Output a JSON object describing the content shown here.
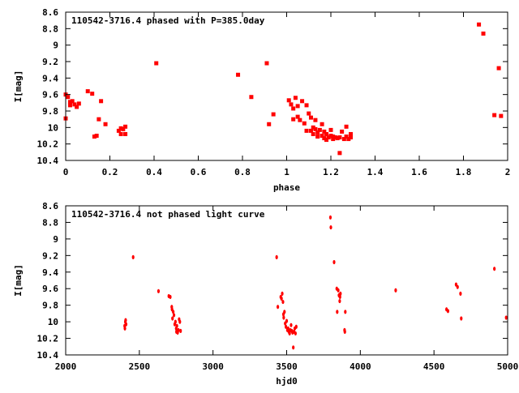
{
  "chart_data": [
    {
      "type": "scatter",
      "title": "110542-3716.4 phased with P=385.0day",
      "xlabel": "phase",
      "ylabel": "I[mag]",
      "xlim": [
        0,
        2
      ],
      "ylim": [
        10.4,
        8.6
      ],
      "y_inverted": true,
      "xticks": [
        0,
        0.2,
        0.4,
        0.6,
        0.8,
        1,
        1.2,
        1.4,
        1.6,
        1.8,
        2
      ],
      "xtick_labels": [
        "0",
        "0.2",
        "0.4",
        "0.6",
        "0.8",
        "1",
        "1.2",
        "1.4",
        "1.6",
        "1.8",
        "2"
      ],
      "yticks": [
        8.6,
        8.8,
        9,
        9.2,
        9.4,
        9.6,
        9.8,
        10,
        10.2,
        10.4
      ],
      "ytick_labels": [
        "8.6",
        "8.8",
        "9",
        "9.2",
        "9.4",
        "9.6",
        "9.8",
        "10",
        "10.2",
        "10.4"
      ],
      "grid": false,
      "marker_color": "#ff0000",
      "series": [
        {
          "points": [
            [
              0.0,
              9.6
            ],
            [
              0.0,
              9.89
            ],
            [
              0.01,
              9.63
            ],
            [
              0.02,
              9.73
            ],
            [
              0.02,
              9.69
            ],
            [
              0.03,
              9.68
            ],
            [
              0.04,
              9.72
            ],
            [
              0.05,
              9.75
            ],
            [
              0.06,
              9.71
            ],
            [
              0.1,
              9.56
            ],
            [
              0.12,
              9.59
            ],
            [
              0.13,
              10.11
            ],
            [
              0.14,
              10.1
            ],
            [
              0.15,
              9.9
            ],
            [
              0.16,
              9.68
            ],
            [
              0.18,
              9.96
            ],
            [
              0.24,
              10.04
            ],
            [
              0.25,
              10.08
            ],
            [
              0.25,
              10.01
            ],
            [
              0.26,
              10.02
            ],
            [
              0.27,
              10.08
            ],
            [
              0.27,
              9.99
            ],
            [
              0.41,
              9.22
            ],
            [
              0.78,
              9.36
            ],
            [
              0.84,
              9.63
            ],
            [
              0.91,
              9.22
            ],
            [
              0.92,
              9.96
            ],
            [
              0.94,
              9.84
            ],
            [
              1.01,
              9.67
            ],
            [
              1.02,
              9.72
            ],
            [
              1.03,
              9.77
            ],
            [
              1.03,
              9.9
            ],
            [
              1.04,
              9.64
            ],
            [
              1.05,
              9.74
            ],
            [
              1.05,
              9.87
            ],
            [
              1.06,
              9.91
            ],
            [
              1.07,
              9.68
            ],
            [
              1.08,
              9.95
            ],
            [
              1.09,
              9.73
            ],
            [
              1.09,
              10.04
            ],
            [
              1.1,
              9.83
            ],
            [
              1.11,
              9.88
            ],
            [
              1.11,
              10.04
            ],
            [
              1.12,
              10.0
            ],
            [
              1.12,
              10.08
            ],
            [
              1.13,
              9.91
            ],
            [
              1.13,
              10.02
            ],
            [
              1.14,
              10.06
            ],
            [
              1.14,
              10.11
            ],
            [
              1.15,
              10.03
            ],
            [
              1.16,
              9.96
            ],
            [
              1.16,
              10.1
            ],
            [
              1.17,
              10.05
            ],
            [
              1.17,
              10.13
            ],
            [
              1.18,
              10.08
            ],
            [
              1.18,
              10.15
            ],
            [
              1.19,
              10.12
            ],
            [
              1.2,
              10.03
            ],
            [
              1.2,
              10.1
            ],
            [
              1.21,
              10.11
            ],
            [
              1.21,
              10.14
            ],
            [
              1.22,
              10.12
            ],
            [
              1.23,
              10.13
            ],
            [
              1.24,
              10.12
            ],
            [
              1.24,
              10.31
            ],
            [
              1.25,
              10.05
            ],
            [
              1.26,
              10.14
            ],
            [
              1.27,
              9.99
            ],
            [
              1.27,
              10.11
            ],
            [
              1.28,
              10.14
            ],
            [
              1.29,
              10.08
            ],
            [
              1.29,
              10.12
            ],
            [
              1.87,
              8.75
            ],
            [
              1.89,
              8.86
            ],
            [
              1.94,
              9.85
            ],
            [
              1.96,
              9.28
            ],
            [
              1.97,
              9.86
            ]
          ]
        }
      ]
    },
    {
      "type": "scatter",
      "title": "110542-3716.4 not phased light curve",
      "xlabel": "hjd0",
      "ylabel": "I[mag]",
      "xlim": [
        2000,
        5000
      ],
      "ylim": [
        10.4,
        8.6
      ],
      "y_inverted": true,
      "xticks": [
        2000,
        2500,
        3000,
        3500,
        4000,
        4500,
        5000
      ],
      "xtick_labels": [
        "2000",
        "2500",
        "3000",
        "3500",
        "4000",
        "4500",
        "5000"
      ],
      "yticks": [
        8.6,
        8.8,
        9,
        9.2,
        9.4,
        9.6,
        9.8,
        10,
        10.2,
        10.4
      ],
      "ytick_labels": [
        "8.6",
        "8.8",
        "9",
        "9.2",
        "9.4",
        "9.6",
        "9.8",
        "10",
        "10.2",
        "10.4"
      ],
      "grid": false,
      "marker_color": "#ff0000",
      "series": [
        {
          "points": [
            [
              2400,
              10.05
            ],
            [
              2402,
              10.08
            ],
            [
              2405,
              10.0
            ],
            [
              2407,
              9.98
            ],
            [
              2410,
              10.03
            ],
            [
              2458,
              9.22
            ],
            [
              2630,
              9.63
            ],
            [
              2700,
              9.69
            ],
            [
              2710,
              9.7
            ],
            [
              2720,
              9.82
            ],
            [
              2722,
              9.85
            ],
            [
              2725,
              9.96
            ],
            [
              2730,
              9.88
            ],
            [
              2735,
              9.92
            ],
            [
              2740,
              10.03
            ],
            [
              2745,
              10.0
            ],
            [
              2750,
              10.08
            ],
            [
              2752,
              10.12
            ],
            [
              2755,
              10.05
            ],
            [
              2760,
              10.13
            ],
            [
              2765,
              10.1
            ],
            [
              2770,
              9.97
            ],
            [
              2775,
              10.0
            ],
            [
              2780,
              10.11
            ],
            [
              3432,
              9.22
            ],
            [
              3440,
              9.82
            ],
            [
              3460,
              9.7
            ],
            [
              3465,
              9.72
            ],
            [
              3470,
              9.66
            ],
            [
              3475,
              9.76
            ],
            [
              3478,
              9.91
            ],
            [
              3480,
              9.95
            ],
            [
              3485,
              9.88
            ],
            [
              3490,
              10.02
            ],
            [
              3495,
              10.06
            ],
            [
              3500,
              9.99
            ],
            [
              3505,
              10.1
            ],
            [
              3510,
              10.08
            ],
            [
              3515,
              10.12
            ],
            [
              3520,
              10.14
            ],
            [
              3525,
              10.1
            ],
            [
              3530,
              10.04
            ],
            [
              3535,
              10.11
            ],
            [
              3540,
              10.13
            ],
            [
              3545,
              10.31
            ],
            [
              3550,
              10.12
            ],
            [
              3555,
              10.08
            ],
            [
              3560,
              10.14
            ],
            [
              3565,
              10.06
            ],
            [
              3797,
              8.74
            ],
            [
              3800,
              8.86
            ],
            [
              3822,
              9.28
            ],
            [
              3840,
              9.6
            ],
            [
              3843,
              9.88
            ],
            [
              3850,
              9.62
            ],
            [
              3855,
              9.68
            ],
            [
              3860,
              9.75
            ],
            [
              3862,
              9.7
            ],
            [
              3865,
              9.66
            ],
            [
              3893,
              10.1
            ],
            [
              3895,
              10.12
            ],
            [
              3898,
              9.88
            ],
            [
              4240,
              9.62
            ],
            [
              4585,
              9.85
            ],
            [
              4595,
              9.87
            ],
            [
              4650,
              9.55
            ],
            [
              4660,
              9.58
            ],
            [
              4680,
              9.66
            ],
            [
              4685,
              9.96
            ],
            [
              4910,
              9.36
            ],
            [
              4990,
              9.95
            ]
          ]
        }
      ]
    }
  ]
}
